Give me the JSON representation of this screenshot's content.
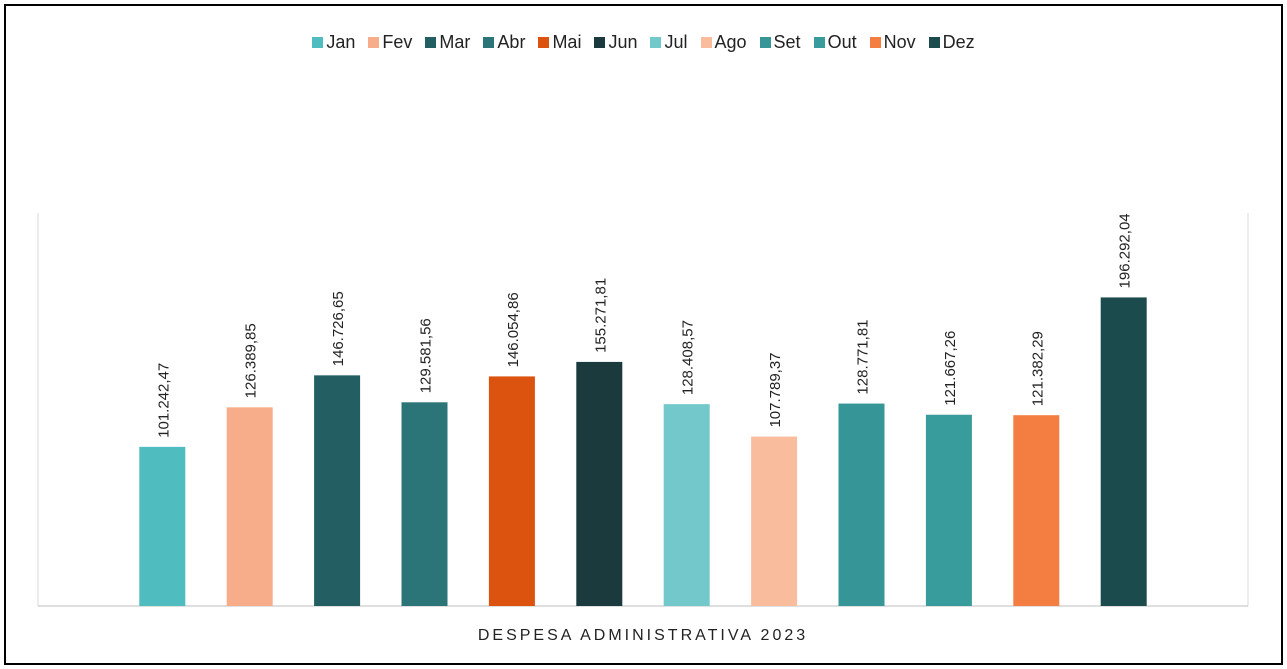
{
  "chart_data": {
    "type": "bar",
    "categories": [
      "DESPESA ADMINISTRATIVA 2023"
    ],
    "ylim": [
      0,
      250000
    ],
    "legend": "top",
    "series": [
      {
        "name": "Jan",
        "color": "#4fbcc0",
        "values": [
          101242.47
        ],
        "value_labels": [
          "101.242,47"
        ]
      },
      {
        "name": "Fev",
        "color": "#f7ad8a",
        "values": [
          126389.85
        ],
        "value_labels": [
          "126.389,85"
        ]
      },
      {
        "name": "Mar",
        "color": "#225e62",
        "values": [
          146726.65
        ],
        "value_labels": [
          "146.726,65"
        ]
      },
      {
        "name": "Abr",
        "color": "#2b7477",
        "values": [
          129581.56
        ],
        "value_labels": [
          "129.581,56"
        ]
      },
      {
        "name": "Mai",
        "color": "#dc520f",
        "values": [
          146054.86
        ],
        "value_labels": [
          "146.054,86"
        ]
      },
      {
        "name": "Jun",
        "color": "#1a3a3e",
        "values": [
          155271.81
        ],
        "value_labels": [
          "155.271,81"
        ]
      },
      {
        "name": "Jul",
        "color": "#72c8cb",
        "values": [
          128408.57
        ],
        "value_labels": [
          "128.408,57"
        ]
      },
      {
        "name": "Ago",
        "color": "#f9bd9e",
        "values": [
          107789.37
        ],
        "value_labels": [
          "107.789,37"
        ]
      },
      {
        "name": "Set",
        "color": "#369697",
        "values": [
          128771.81
        ],
        "value_labels": [
          "128.771,81"
        ]
      },
      {
        "name": "Out",
        "color": "#389b9c",
        "values": [
          121667.26
        ],
        "value_labels": [
          "121.667,26"
        ]
      },
      {
        "name": "Nov",
        "color": "#f47e42",
        "values": [
          121382.29
        ],
        "value_labels": [
          "121.382,29"
        ]
      },
      {
        "name": "Dez",
        "color": "#1c4b4e",
        "values": [
          196292.04
        ],
        "value_labels": [
          "196.292,04"
        ]
      }
    ]
  }
}
